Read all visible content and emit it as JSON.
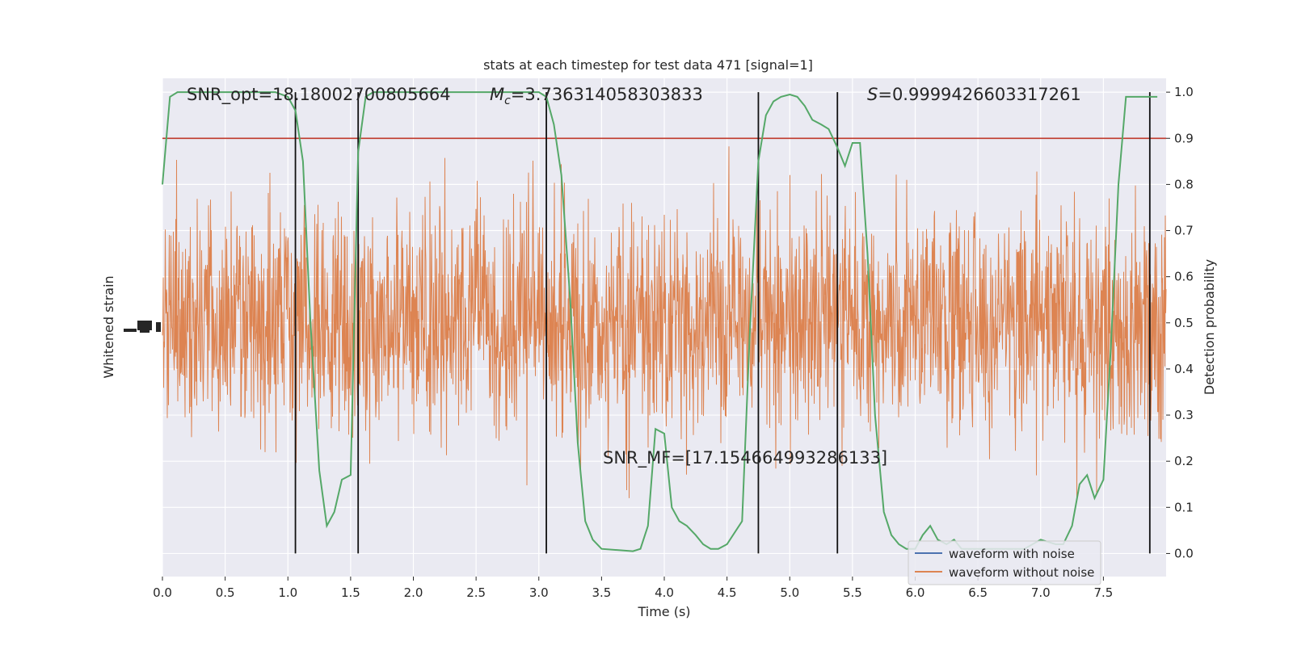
{
  "chart_data": {
    "type": "line",
    "title": "stats at each timestep for test data 471 [signal=1]",
    "xlabel": "Time (s)",
    "ylabel_left": "Whitened strain",
    "ylabel_right": "Detection probability",
    "xlim": [
      0.0,
      8.0
    ],
    "ylim_right": [
      -0.05,
      1.03
    ],
    "xticks": [
      0.0,
      0.5,
      1.0,
      1.5,
      2.0,
      2.5,
      3.0,
      3.5,
      4.0,
      4.5,
      5.0,
      5.5,
      6.0,
      6.5,
      7.0,
      7.5
    ],
    "xtick_labels": [
      "0.0",
      "0.5",
      "1.0",
      "1.5",
      "2.0",
      "2.5",
      "3.0",
      "3.5",
      "4.0",
      "4.5",
      "5.0",
      "5.5",
      "6.0",
      "6.5",
      "7.0",
      "7.5"
    ],
    "yticks_right": [
      0.0,
      0.1,
      0.2,
      0.3,
      0.4,
      0.5,
      0.6,
      0.7,
      0.8,
      0.9,
      1.0
    ],
    "ytick_labels_right": [
      "0.0",
      "0.1",
      "0.2",
      "0.3",
      "0.4",
      "0.5",
      "0.6",
      "0.7",
      "0.8",
      "0.9",
      "1.0"
    ],
    "grid": true,
    "legend_position": "lower-right",
    "legend": [
      {
        "label": "waveform with noise",
        "color": "#4c72b0"
      },
      {
        "label": "waveform without noise",
        "color": "#dd8452"
      }
    ],
    "annotations": {
      "snr_opt": "SNR_opt=18.18002700805664",
      "mc_symbol": "M",
      "mc_sub": "c",
      "mc_value": "=3.736314058303833",
      "s_symbol": "S",
      "s_value": "=0.9999426603317261",
      "snr_mf": "SNR_MF=[17.154664993286133]"
    },
    "threshold": {
      "y": 0.9,
      "color": "#c0392b"
    },
    "vertical_lines_x": [
      1.06,
      1.56,
      3.06,
      4.75,
      5.38,
      7.87
    ],
    "detection_probability": {
      "color": "#55a868",
      "x": [
        0.0,
        0.06,
        0.12,
        0.25,
        0.5,
        0.75,
        0.9,
        1.0,
        1.06,
        1.12,
        1.18,
        1.25,
        1.31,
        1.37,
        1.43,
        1.5,
        1.56,
        1.62,
        1.68,
        1.75,
        2.0,
        2.5,
        3.0,
        3.06,
        3.12,
        3.18,
        3.25,
        3.31,
        3.37,
        3.43,
        3.5,
        3.75,
        3.81,
        3.87,
        3.93,
        4.0,
        4.06,
        4.12,
        4.18,
        4.25,
        4.31,
        4.37,
        4.43,
        4.5,
        4.62,
        4.68,
        4.75,
        4.81,
        4.87,
        4.93,
        5.0,
        5.06,
        5.12,
        5.18,
        5.25,
        5.31,
        5.38,
        5.44,
        5.5,
        5.56,
        5.62,
        5.68,
        5.75,
        5.81,
        5.87,
        5.93,
        6.0,
        6.06,
        6.12,
        6.18,
        6.25,
        6.31,
        6.37,
        6.5,
        6.75,
        6.87,
        7.0,
        7.12,
        7.18,
        7.25,
        7.31,
        7.37,
        7.43,
        7.5,
        7.56,
        7.62,
        7.68,
        7.75,
        7.81,
        7.87,
        7.93
      ],
      "y": [
        0.8,
        0.99,
        1.0,
        1.0,
        1.0,
        1.0,
        1.0,
        0.99,
        0.96,
        0.85,
        0.5,
        0.18,
        0.06,
        0.09,
        0.16,
        0.17,
        0.87,
        0.99,
        1.0,
        1.0,
        1.0,
        1.0,
        1.0,
        0.99,
        0.93,
        0.82,
        0.55,
        0.24,
        0.07,
        0.03,
        0.01,
        0.005,
        0.01,
        0.06,
        0.27,
        0.26,
        0.1,
        0.07,
        0.06,
        0.04,
        0.02,
        0.01,
        0.01,
        0.02,
        0.07,
        0.47,
        0.85,
        0.95,
        0.98,
        0.99,
        0.995,
        0.99,
        0.97,
        0.94,
        0.93,
        0.92,
        0.88,
        0.84,
        0.89,
        0.89,
        0.65,
        0.3,
        0.09,
        0.04,
        0.02,
        0.01,
        0.01,
        0.04,
        0.06,
        0.03,
        0.02,
        0.03,
        0.01,
        0.01,
        0.01,
        0.01,
        0.03,
        0.02,
        0.02,
        0.06,
        0.15,
        0.17,
        0.12,
        0.16,
        0.45,
        0.8,
        0.99,
        0.99,
        0.99,
        0.99,
        0.99
      ]
    },
    "strain_trace": {
      "color": "#dd8452",
      "x_start": 0.0,
      "x_end": 8.0
    }
  }
}
